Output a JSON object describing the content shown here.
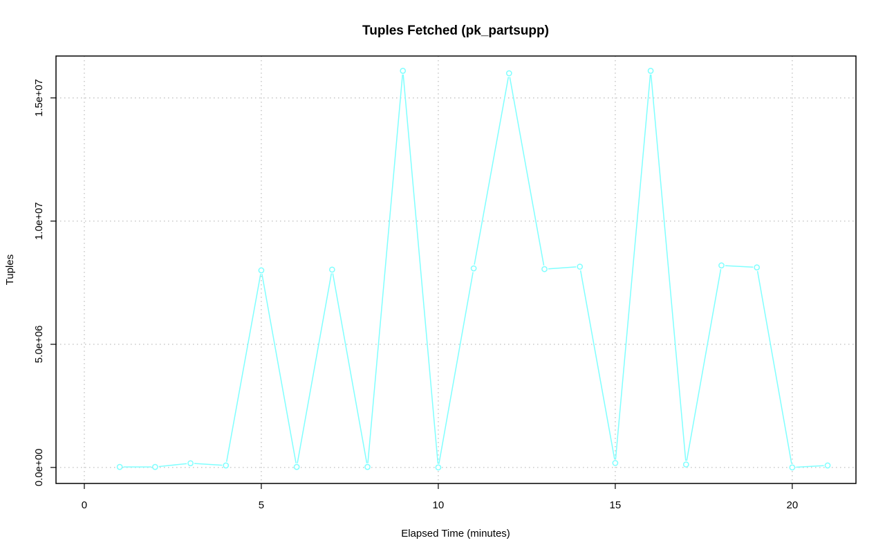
{
  "chart_data": {
    "type": "line",
    "title": "Tuples Fetched (pk_partsupp)",
    "xlabel": "Elapsed Time (minutes)",
    "ylabel": "Tuples",
    "xlim": [
      -0.8,
      21.8
    ],
    "ylim": [
      -650000,
      16700000
    ],
    "x_ticks": [
      0,
      5,
      10,
      15,
      20
    ],
    "x_tick_labels": [
      "0",
      "5",
      "10",
      "15",
      "20"
    ],
    "y_ticks": [
      0,
      5000000,
      10000000,
      15000000
    ],
    "y_tick_labels": [
      "0.0e+00",
      "5.0e+06",
      "1.0e+07",
      "1.5e+07"
    ],
    "grid": true,
    "series_color": "#7FFFFF",
    "series": [
      {
        "x": [
          1,
          2,
          3,
          4,
          5,
          6,
          7,
          8,
          9,
          10,
          11,
          12,
          13,
          14,
          15,
          16,
          17,
          18,
          19,
          20,
          21
        ],
        "values": [
          20000,
          20000,
          170000,
          80000,
          8000000,
          20000,
          8030000,
          20000,
          16100000,
          0,
          8080000,
          16000000,
          8050000,
          8150000,
          180000,
          16100000,
          120000,
          8200000,
          8120000,
          0,
          80000
        ]
      }
    ]
  }
}
